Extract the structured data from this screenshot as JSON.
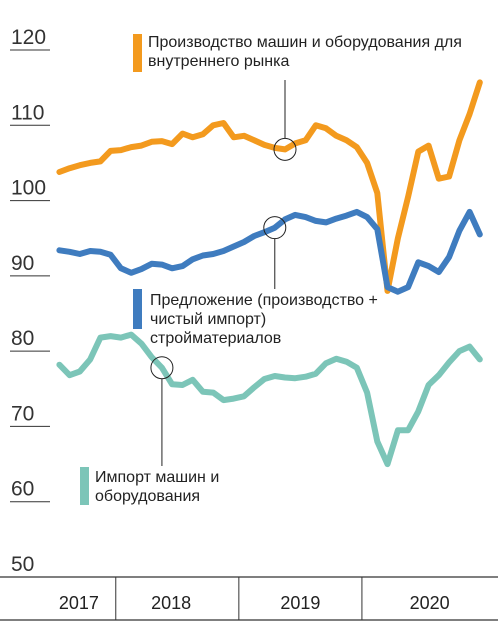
{
  "chart_data": {
    "type": "line",
    "x": [
      2017.542,
      2017.625,
      2017.708,
      2017.792,
      2017.875,
      2017.958,
      2018.042,
      2018.125,
      2018.208,
      2018.292,
      2018.375,
      2018.458,
      2018.542,
      2018.625,
      2018.708,
      2018.792,
      2018.875,
      2018.958,
      2019.042,
      2019.125,
      2019.208,
      2019.292,
      2019.375,
      2019.458,
      2019.542,
      2019.625,
      2019.708,
      2019.792,
      2019.875,
      2019.958,
      2020.042,
      2020.125,
      2020.208,
      2020.292,
      2020.375,
      2020.458,
      2020.542,
      2020.625,
      2020.708,
      2020.792,
      2020.875,
      2020.958
    ],
    "series": [
      {
        "name": "Производство машин и оборудования для внутреннего рынка",
        "color": "#f39a1e",
        "values": [
          103.8,
          104.3,
          104.7,
          105.0,
          105.2,
          106.6,
          106.7,
          107.1,
          107.3,
          107.8,
          107.9,
          107.5,
          108.9,
          108.4,
          108.8,
          110.0,
          110.3,
          108.4,
          108.6,
          108.0,
          107.4,
          107.0,
          106.8,
          107.6,
          108.0,
          110.0,
          109.6,
          108.6,
          108.0,
          107.1,
          105.0,
          101.0,
          88.0,
          95.0,
          100.5,
          106.5,
          107.3,
          102.9,
          103.2,
          108.0,
          111.5,
          115.7
        ]
      },
      {
        "name": "Предложение (производство + чистый импорт) стройматериалов",
        "color": "#3f7cbf",
        "values": [
          93.4,
          93.2,
          92.9,
          93.3,
          93.2,
          92.8,
          91.0,
          90.4,
          90.9,
          91.6,
          91.5,
          91.0,
          91.3,
          92.2,
          92.7,
          92.9,
          93.3,
          93.9,
          94.5,
          95.3,
          95.8,
          96.4,
          97.5,
          98.1,
          97.8,
          97.3,
          97.1,
          97.6,
          98.0,
          98.5,
          97.8,
          96.2,
          88.5,
          87.9,
          88.5,
          91.8,
          91.3,
          90.5,
          92.5,
          96.0,
          98.5,
          95.5
        ]
      },
      {
        "name": "Импорт машин и оборудования",
        "color": "#7cc5b8",
        "values": [
          78.2,
          76.8,
          77.3,
          78.9,
          81.8,
          82.0,
          81.8,
          82.2,
          81.0,
          79.2,
          77.8,
          75.6,
          75.5,
          76.2,
          74.6,
          74.5,
          73.5,
          73.7,
          74.0,
          75.2,
          76.3,
          76.7,
          76.5,
          76.4,
          76.6,
          77.0,
          78.4,
          79.0,
          78.6,
          77.8,
          74.5,
          68.0,
          65.0,
          69.5,
          69.5,
          72.0,
          75.5,
          76.8,
          78.5,
          80.0,
          80.6,
          78.9
        ]
      }
    ],
    "xlim": [
      2017.1,
      2021
    ],
    "xticks": [
      {
        "value": 2017.7,
        "label": "2017"
      },
      {
        "value": 2018.45,
        "label": "2018"
      },
      {
        "value": 2019.5,
        "label": "2019"
      },
      {
        "value": 2020.55,
        "label": "2020"
      }
    ],
    "ylim": [
      50,
      120
    ],
    "yticks": [
      50,
      60,
      70,
      80,
      90,
      100,
      110,
      120
    ]
  }
}
